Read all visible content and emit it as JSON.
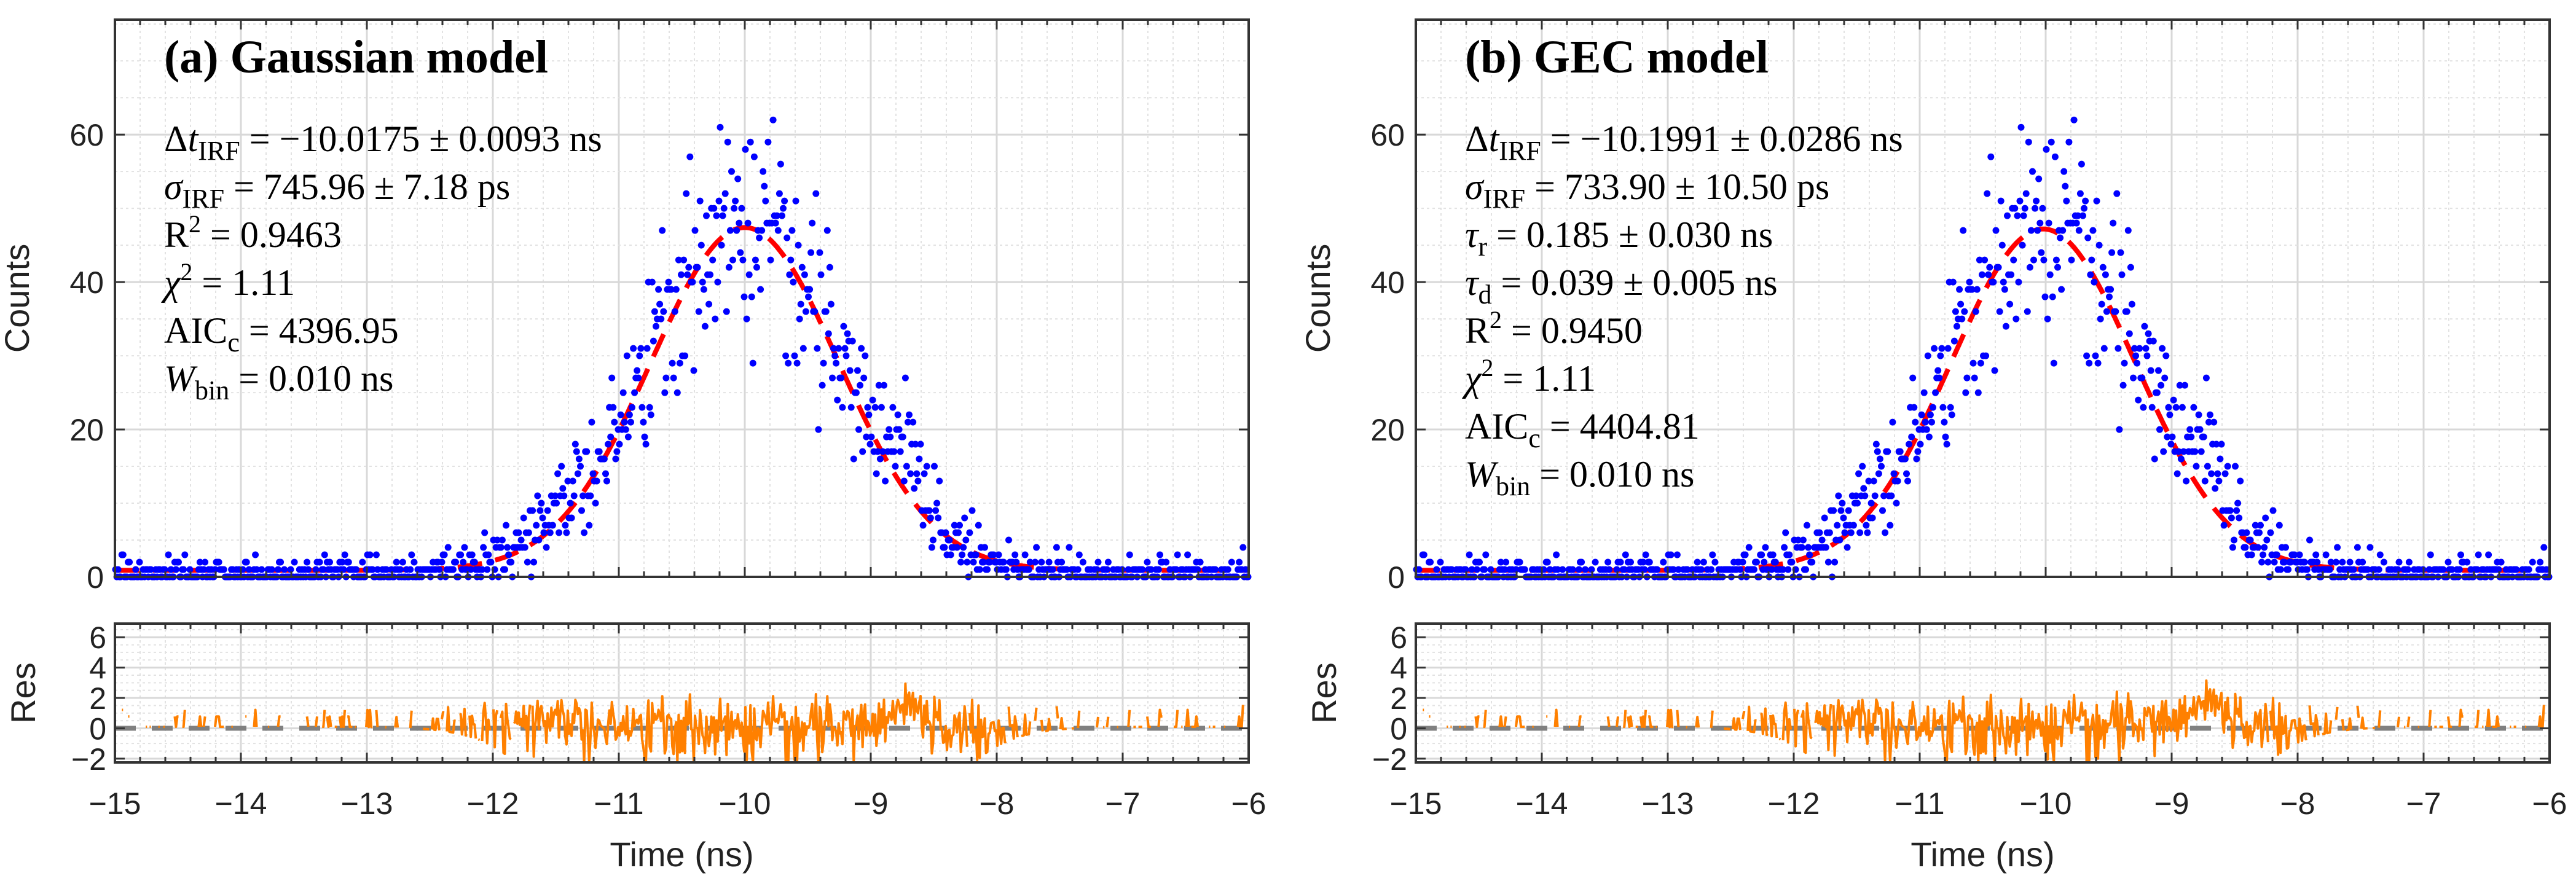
{
  "figure": {
    "xlabel": "Time (ns)",
    "ylabel_main": "Counts",
    "ylabel_res": "Res"
  },
  "chart_data": [
    {
      "type": "scatter",
      "title": "(a) Gaussian model",
      "xlim": [
        -15,
        -6
      ],
      "ylim": [
        0,
        75.6
      ],
      "res_ylim": [
        -2.25,
        6.9
      ],
      "xticks": [
        "−15",
        "−14",
        "−13",
        "−12",
        "−11",
        "−10",
        "−9",
        "−8",
        "−7",
        "−6"
      ],
      "xtick_values": [
        -15,
        -14,
        -13,
        -12,
        -11,
        -10,
        -9,
        -8,
        -7,
        -6
      ],
      "yticks": [
        "0",
        "20",
        "40",
        "60"
      ],
      "ytick_values": [
        0,
        20,
        40,
        60
      ],
      "res_yticks": [
        "−2",
        "0",
        "2",
        "4",
        "6"
      ],
      "res_ytick_values": [
        -2,
        0,
        2,
        4,
        6
      ],
      "bin_width_ns": 0.01,
      "fit_curve": {
        "center": -10.0,
        "sigma": 0.746,
        "amplitude": 46.5,
        "background": 0.9
      },
      "data_extra": {
        "peak_counts_max": 63
      },
      "series": [
        {
          "name": "Data",
          "color": "#0000ff"
        },
        {
          "name": "Fit",
          "color": "#ff0000"
        },
        {
          "name": "Residual",
          "color": "#ff8000"
        },
        {
          "name": "Zero",
          "color": "#808080"
        }
      ],
      "annotations": [
        {
          "sym": "Δ",
          "sym_it": "t",
          "sub": "IRF",
          "sup": "",
          "val": " = −10.0175 ± 0.0093 ns"
        },
        {
          "sym": "",
          "sym_it": "σ",
          "sub": "IRF",
          "sup": "",
          "val": " = 745.96 ± 7.18 ps"
        },
        {
          "sym": "R",
          "sym_it": "",
          "sub": "",
          "sup": "2",
          "val": " = 0.9463"
        },
        {
          "sym": "",
          "sym_it": "χ",
          "sub": "",
          "sup": "2",
          "val": " = 1.11"
        },
        {
          "sym": "AIC",
          "sym_it": "",
          "sub": "c",
          "sup": "",
          "val": " = 4396.95"
        },
        {
          "sym": "",
          "sym_it": "W",
          "sub": "bin",
          "sup": "",
          "val": " = 0.010 ns"
        }
      ]
    },
    {
      "type": "scatter",
      "title": "(b) GEC model",
      "xlim": [
        -15,
        -6
      ],
      "ylim": [
        0,
        75.6
      ],
      "res_ylim": [
        -2.25,
        6.9
      ],
      "xticks": [
        "−15",
        "−14",
        "−13",
        "−12",
        "−11",
        "−10",
        "−9",
        "−8",
        "−7",
        "−6"
      ],
      "xtick_values": [
        -15,
        -14,
        -13,
        -12,
        -11,
        -10,
        -9,
        -8,
        -7,
        -6
      ],
      "yticks": [
        "0",
        "20",
        "40",
        "60"
      ],
      "ytick_values": [
        0,
        20,
        40,
        60
      ],
      "res_yticks": [
        "−2",
        "0",
        "2",
        "4",
        "6"
      ],
      "res_ytick_values": [
        -2,
        0,
        2,
        4,
        6
      ],
      "bin_width_ns": 0.01,
      "fit_curve": {
        "center": -10.02,
        "sigma": 0.734,
        "amplitude": 46.3,
        "background": 0.9
      },
      "data_extra": {
        "peak_counts_max": 63
      },
      "series": [
        {
          "name": "Data",
          "color": "#0000ff"
        },
        {
          "name": "Fit",
          "color": "#ff0000"
        },
        {
          "name": "Residual",
          "color": "#ff8000"
        },
        {
          "name": "Zero",
          "color": "#808080"
        }
      ],
      "annotations": [
        {
          "sym": "Δ",
          "sym_it": "t",
          "sub": "IRF",
          "sup": "",
          "val": " = −10.1991 ± 0.0286 ns"
        },
        {
          "sym": "",
          "sym_it": "σ",
          "sub": "IRF",
          "sup": "",
          "val": " = 733.90 ± 10.50 ps"
        },
        {
          "sym": "",
          "sym_it": "τ",
          "sub": "r",
          "sup": "",
          "val": " = 0.185 ± 0.030 ns"
        },
        {
          "sym": "",
          "sym_it": "τ",
          "sub": "d",
          "sup": "",
          "val": " = 0.039 ± 0.005 ns"
        },
        {
          "sym": "R",
          "sym_it": "",
          "sub": "",
          "sup": "2",
          "val": " = 0.9450"
        },
        {
          "sym": "",
          "sym_it": "χ",
          "sub": "",
          "sup": "2",
          "val": " = 1.11"
        },
        {
          "sym": "AIC",
          "sym_it": "",
          "sub": "c",
          "sup": "",
          "val": " = 4404.81"
        },
        {
          "sym": "",
          "sym_it": "W",
          "sub": "bin",
          "sup": "",
          "val": " = 0.010 ns"
        }
      ]
    }
  ]
}
